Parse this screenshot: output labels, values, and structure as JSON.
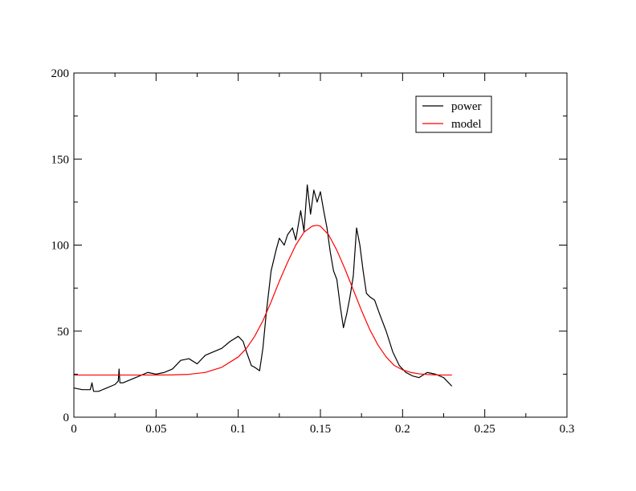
{
  "chart_data": {
    "type": "line",
    "title": "",
    "xlabel": "",
    "ylabel": "",
    "xlim": [
      0,
      0.3
    ],
    "ylim": [
      0,
      200
    ],
    "x_ticks": [
      "0",
      "0.05",
      "0.1",
      "0.15",
      "0.2",
      "0.25",
      "0.3"
    ],
    "y_ticks": [
      "0",
      "50",
      "100",
      "150",
      "200"
    ],
    "grid": false,
    "legend_position": "top-right",
    "series": [
      {
        "name": "power",
        "color": "#000000",
        "x": [
          0,
          0.005,
          0.01,
          0.011,
          0.012,
          0.015,
          0.02,
          0.025,
          0.027,
          0.0275,
          0.028,
          0.03,
          0.035,
          0.04,
          0.045,
          0.05,
          0.055,
          0.06,
          0.065,
          0.07,
          0.075,
          0.08,
          0.085,
          0.09,
          0.095,
          0.1,
          0.103,
          0.105,
          0.108,
          0.11,
          0.113,
          0.115,
          0.117,
          0.12,
          0.123,
          0.125,
          0.128,
          0.13,
          0.133,
          0.135,
          0.138,
          0.14,
          0.142,
          0.144,
          0.146,
          0.148,
          0.15,
          0.152,
          0.154,
          0.156,
          0.158,
          0.16,
          0.162,
          0.164,
          0.166,
          0.168,
          0.17,
          0.172,
          0.174,
          0.176,
          0.178,
          0.18,
          0.183,
          0.186,
          0.19,
          0.194,
          0.198,
          0.202,
          0.206,
          0.21,
          0.215,
          0.22,
          0.225,
          0.23
        ],
        "y": [
          17,
          16,
          16,
          20,
          15,
          15,
          17,
          19,
          21,
          28,
          20,
          20,
          22,
          24,
          26,
          25,
          26,
          28,
          33,
          34,
          31,
          36,
          38,
          40,
          44,
          47,
          44,
          38,
          30,
          29,
          27,
          40,
          60,
          85,
          97,
          104,
          100,
          106,
          110,
          103,
          120,
          108,
          135,
          118,
          132,
          125,
          131,
          120,
          110,
          96,
          85,
          80,
          65,
          52,
          60,
          70,
          82,
          110,
          100,
          85,
          72,
          70,
          68,
          60,
          50,
          38,
          30,
          26,
          24,
          23,
          26,
          25,
          23,
          18
        ]
      },
      {
        "name": "model",
        "color": "#ff0000",
        "x": [
          0,
          0.01,
          0.02,
          0.03,
          0.04,
          0.05,
          0.06,
          0.07,
          0.08,
          0.09,
          0.1,
          0.105,
          0.11,
          0.115,
          0.12,
          0.125,
          0.13,
          0.135,
          0.14,
          0.145,
          0.148,
          0.15,
          0.155,
          0.16,
          0.165,
          0.17,
          0.175,
          0.18,
          0.185,
          0.19,
          0.195,
          0.2,
          0.205,
          0.21,
          0.215,
          0.22,
          0.225,
          0.23
        ],
        "y": [
          24.5,
          24.5,
          24.5,
          24.5,
          24.5,
          24.5,
          24.6,
          24.9,
          26,
          29,
          35,
          40,
          47,
          56,
          67,
          79,
          90,
          100,
          107.5,
          111,
          111.5,
          111,
          106,
          97,
          86,
          74,
          62,
          51,
          42,
          35,
          30,
          27.5,
          26,
          25.2,
          24.8,
          24.6,
          24.5,
          24.5
        ]
      }
    ]
  }
}
